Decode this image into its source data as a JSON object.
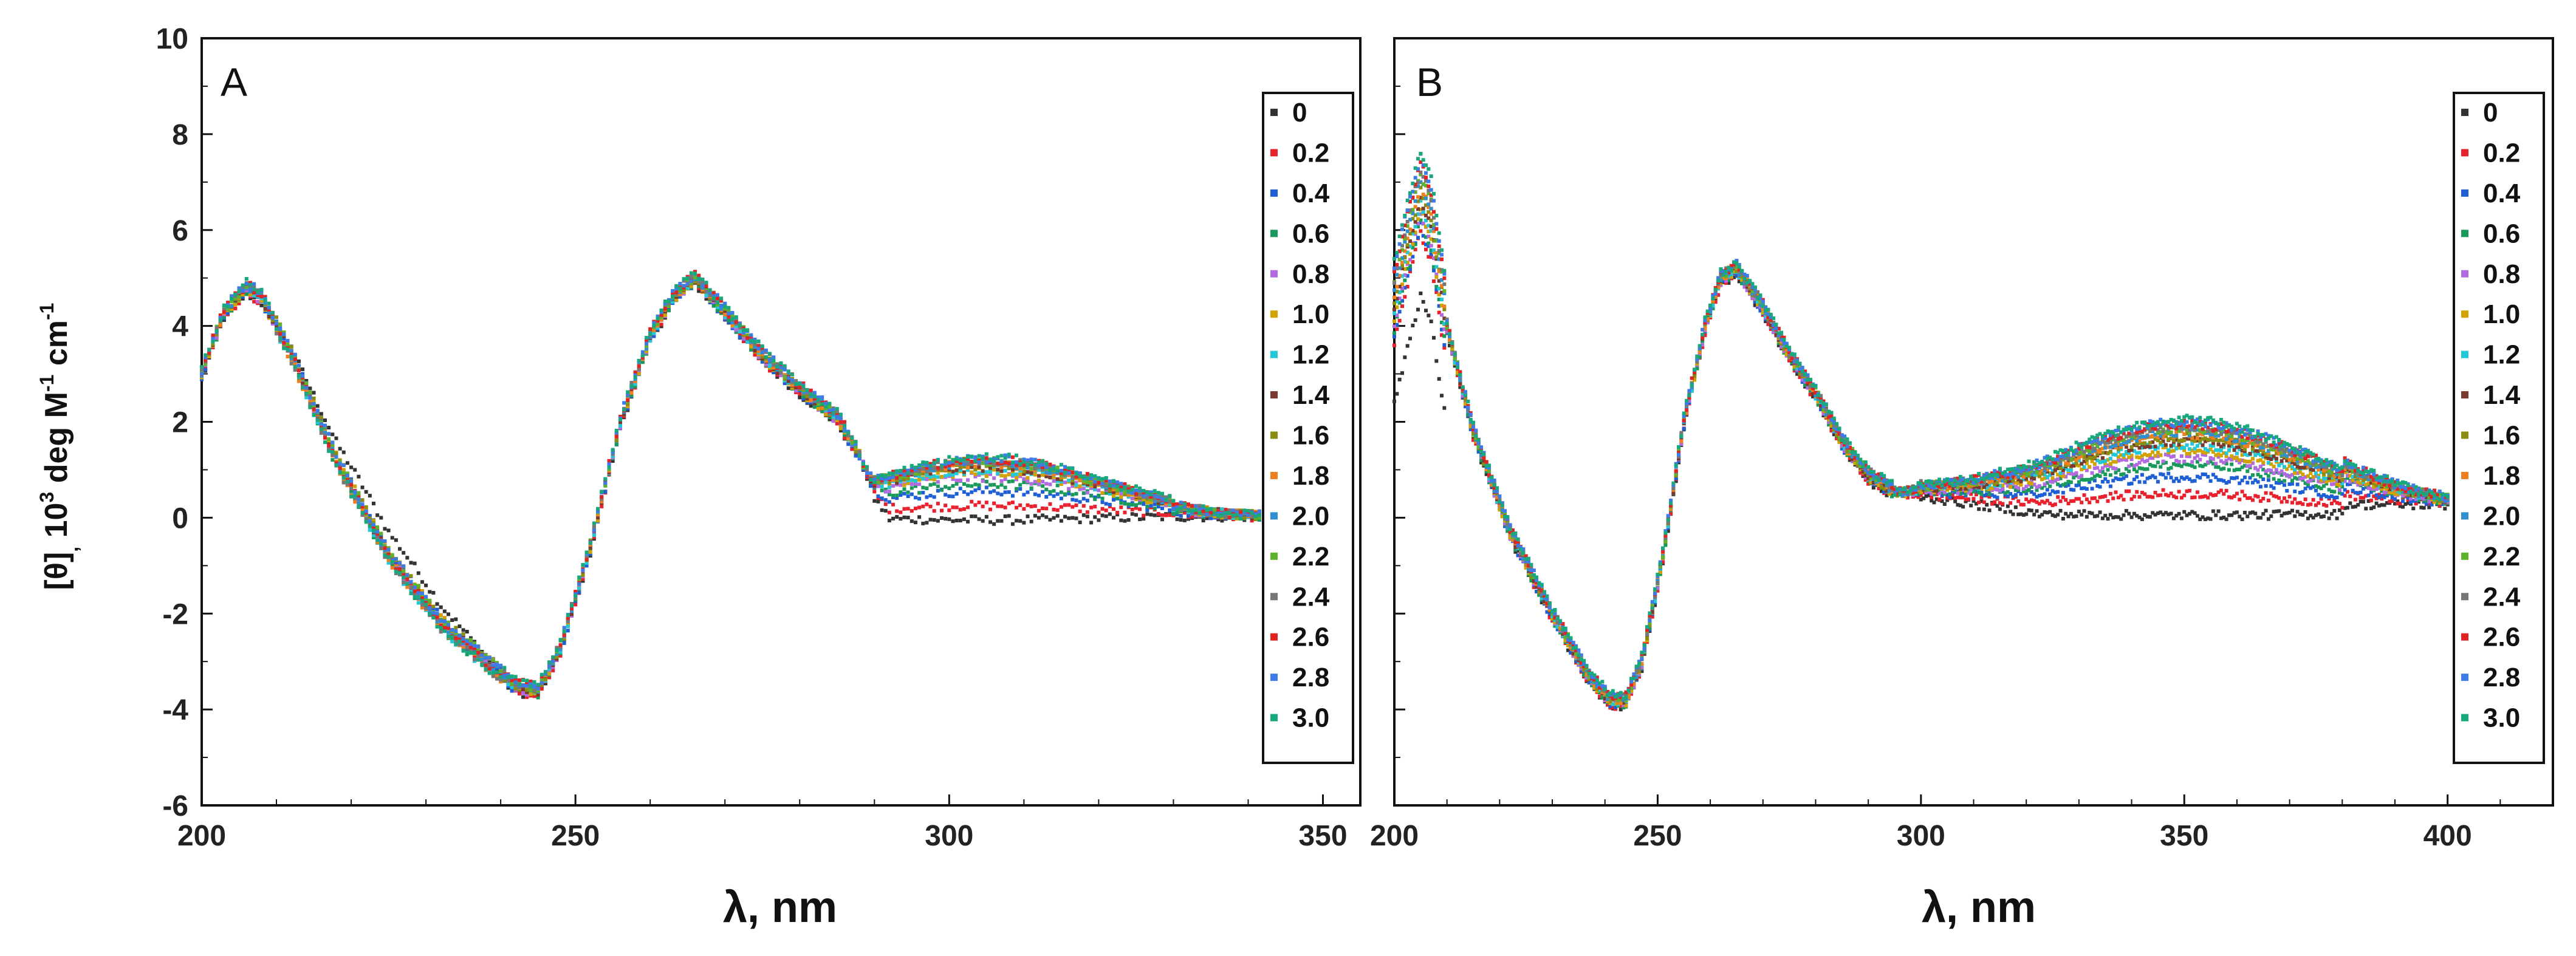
{
  "figure": {
    "y_label": {
      "theta": "[θ]",
      "comma": ",",
      "ten": "10",
      "exp3": "3",
      "deg_m": "deg M",
      "exp_m1a": "-1",
      "cm": "cm",
      "exp_m1b": "-1"
    },
    "y_ticks": [
      "-6",
      "-4",
      "-2",
      "0",
      "2",
      "4",
      "6",
      "8",
      "10"
    ],
    "legend_labels": [
      "0",
      "0.2",
      "0.4",
      "0.6",
      "0.8",
      "1.0",
      "1.2",
      "1.4",
      "1.6",
      "1.8",
      "2.0",
      "2.2",
      "2.4",
      "2.6",
      "2.8",
      "3.0"
    ],
    "series_colors": [
      "#333333",
      "#e8212c",
      "#1f5fd6",
      "#1a9a5a",
      "#b26ae0",
      "#d1a200",
      "#22c8d8",
      "#7a3b2e",
      "#8a8d12",
      "#f07f1f",
      "#2f8fd0",
      "#5fb32c",
      "#777777",
      "#e02424",
      "#3d7be8",
      "#18a87d"
    ]
  },
  "chart_data": [
    {
      "type": "scatter",
      "panel": "A",
      "title": "A",
      "xlabel": "λ, nm",
      "ylabel": "[θ], 10^3 deg M^-1 cm^-1",
      "xlim": [
        200,
        355
      ],
      "ylim": [
        -6,
        10
      ],
      "x_ticks": [
        "200",
        "250",
        "300",
        "350"
      ],
      "x_range": [
        200,
        350
      ],
      "x_step": 0.5,
      "legend": "right, inside",
      "shape_points": {
        "x": [
          200,
          203,
          206,
          208,
          212,
          218,
          225,
          232,
          238,
          242,
          245,
          248,
          252,
          256,
          260,
          263,
          266,
          270,
          275,
          280,
          285,
          290,
          295,
          300,
          305,
          310,
          320,
          330,
          340,
          350
        ],
        "y": [
          3.0,
          4.3,
          4.8,
          4.6,
          3.4,
          1.2,
          -0.8,
          -2.2,
          -3.0,
          -3.5,
          -3.6,
          -2.7,
          -0.6,
          2.0,
          3.8,
          4.6,
          5.0,
          4.3,
          3.4,
          2.7,
          2.1,
          0.8,
          0.9,
          1.0,
          1.05,
          1.0,
          0.7,
          0.35,
          0.1,
          0.0
        ]
      },
      "series_endpoints_at_305nm": [
        -0.1,
        0.2,
        0.5,
        0.65,
        0.8,
        0.9,
        0.95,
        1.0,
        1.05,
        1.08,
        1.1,
        1.12,
        1.14,
        1.16,
        1.18,
        1.2
      ]
    },
    {
      "type": "scatter",
      "panel": "B",
      "title": "B",
      "xlabel": "λ, nm",
      "ylabel": "[θ], 10^3 deg M^-1 cm^-1",
      "xlim": [
        200,
        420
      ],
      "ylim": [
        -6,
        10
      ],
      "x_ticks": [
        "200",
        "250",
        "300",
        "350",
        "400"
      ],
      "x_range": [
        200,
        400
      ],
      "x_step": 0.5,
      "legend": "right, inside",
      "shape_points": {
        "x": [
          200,
          202,
          205,
          207,
          210,
          215,
          222,
          230,
          237,
          241,
          244,
          247,
          251,
          255,
          259,
          262,
          265,
          270,
          275,
          280,
          285,
          290,
          295,
          300,
          310,
          330,
          350,
          370,
          385,
          400
        ],
        "y": [
          4.5,
          5.5,
          6.8,
          6.2,
          4.0,
          1.8,
          -0.3,
          -2.0,
          -3.3,
          -3.8,
          -3.8,
          -3.0,
          -0.8,
          2.0,
          4.0,
          5.0,
          5.2,
          4.4,
          3.4,
          2.6,
          1.6,
          0.9,
          0.55,
          0.35,
          0.2,
          0.05,
          0.0,
          0.0,
          -0.05,
          -0.1
        ]
      },
      "series_peak_at_350nm": [
        -0.05,
        0.4,
        0.75,
        1.0,
        1.15,
        1.3,
        1.4,
        1.5,
        1.58,
        1.65,
        1.7,
        1.75,
        1.8,
        1.85,
        1.9,
        1.95
      ]
    }
  ]
}
